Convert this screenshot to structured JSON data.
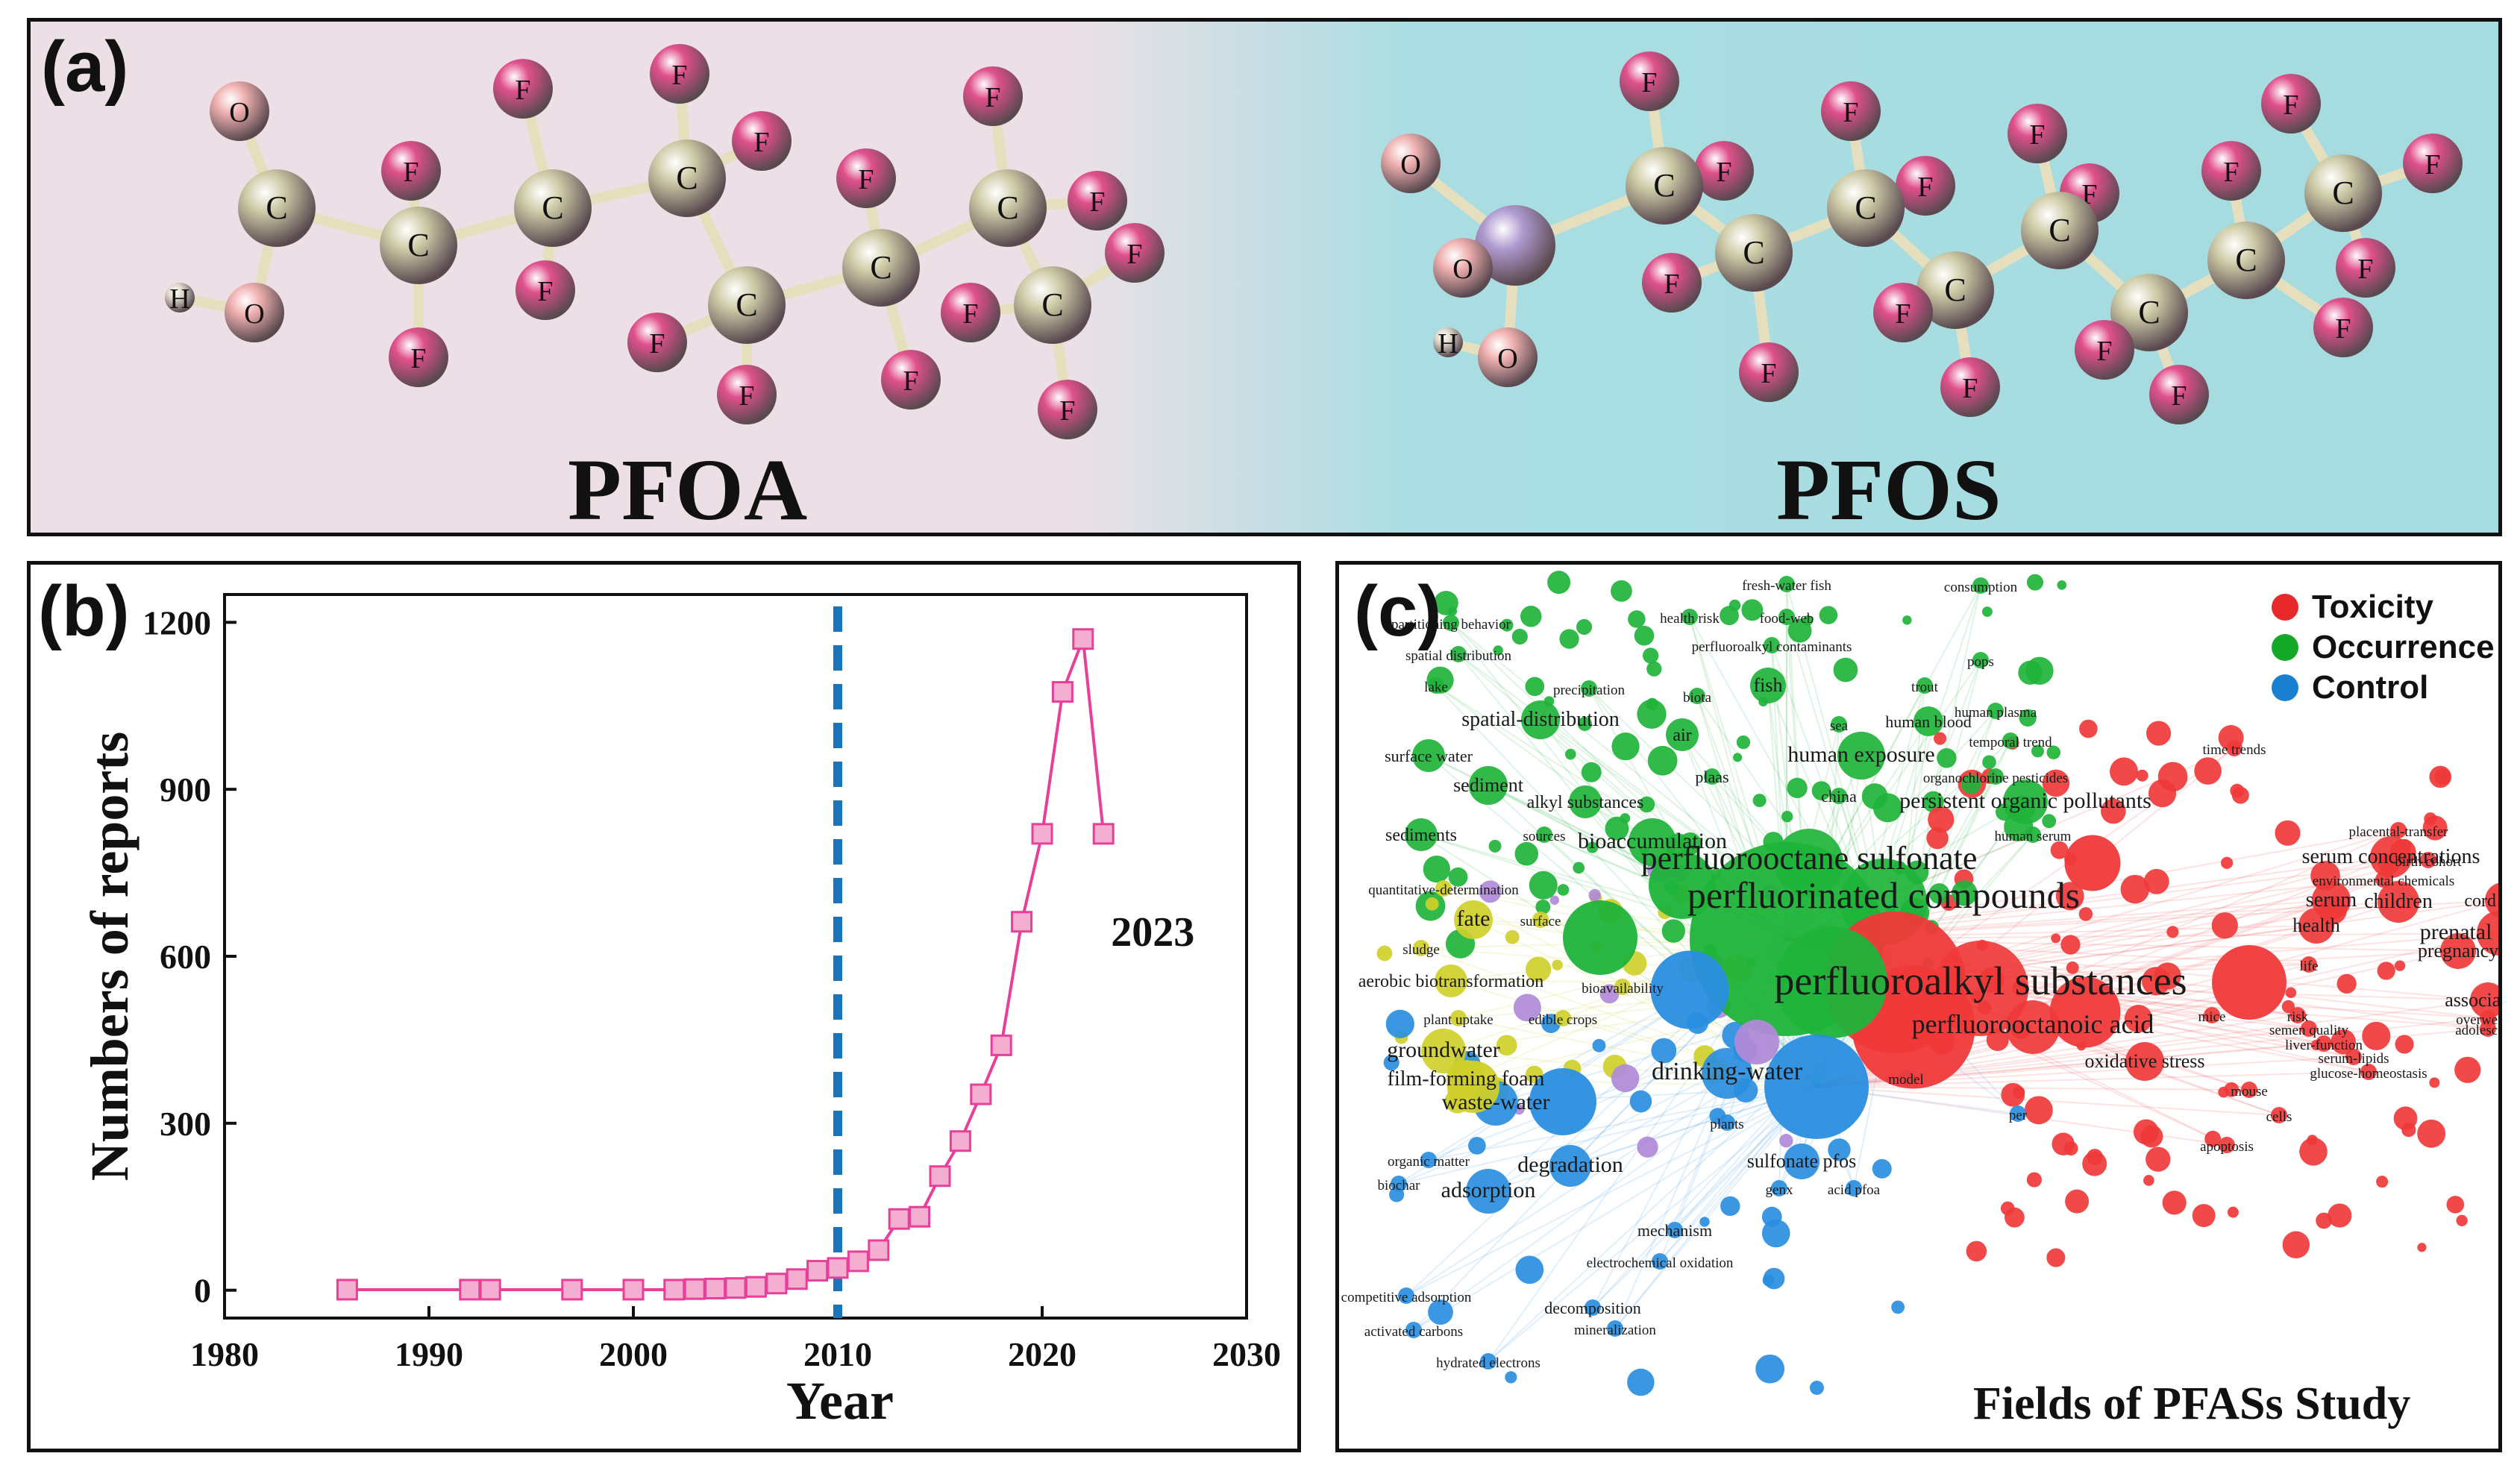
{
  "panel_a": {
    "label": "(a)",
    "left_molecule": "PFOA",
    "right_molecule": "PFOS",
    "atom_labels": {
      "carbon": "C",
      "fluorine": "F",
      "oxygen": "O",
      "hydrogen": "H"
    },
    "colors": {
      "carbon": "#cfcca8",
      "fluorine": "#e0508c",
      "oxygen": "#f0b0b0",
      "sulfur": "#b09ad0",
      "hydrogen": "#e0d8cc"
    }
  },
  "panel_b": {
    "label": "(b)",
    "annotation": "2023"
  },
  "panel_c": {
    "label": "(c)",
    "title": "Fields of PFASs Study",
    "legend": [
      {
        "label": "Toxicity",
        "color": "#e8292b"
      },
      {
        "label": "Occurrence",
        "color": "#16a829"
      },
      {
        "label": "Control",
        "color": "#1a7fd0"
      }
    ],
    "cluster_colors": {
      "toxicity": "#f0393a",
      "occurrence": "#1fb33a",
      "control": "#2a8ee0",
      "yellow": "#cfcf2a",
      "purple": "#b08ad8"
    },
    "keywords": [
      {
        "text": "fresh-water fish",
        "cluster": "occurrence"
      },
      {
        "text": "consumption",
        "cluster": "occurrence"
      },
      {
        "text": "partitioning behavior",
        "cluster": "occurrence"
      },
      {
        "text": "health risk",
        "cluster": "occurrence"
      },
      {
        "text": "food-web",
        "cluster": "occurrence"
      },
      {
        "text": "spatial distribution",
        "cluster": "occurrence"
      },
      {
        "text": "perfluoroalkyl contaminants",
        "cluster": "occurrence"
      },
      {
        "text": "pops",
        "cluster": "occurrence"
      },
      {
        "text": "lake",
        "cluster": "occurrence"
      },
      {
        "text": "precipitation",
        "cluster": "occurrence"
      },
      {
        "text": "fish",
        "cluster": "occurrence"
      },
      {
        "text": "trout",
        "cluster": "occurrence"
      },
      {
        "text": "biota",
        "cluster": "occurrence"
      },
      {
        "text": "human plasma",
        "cluster": "occurrence"
      },
      {
        "text": "spatial-distribution",
        "cluster": "occurrence"
      },
      {
        "text": "sea",
        "cluster": "occurrence"
      },
      {
        "text": "human blood",
        "cluster": "occurrence"
      },
      {
        "text": "air",
        "cluster": "occurrence"
      },
      {
        "text": "temporal trend",
        "cluster": "occurrence"
      },
      {
        "text": "surface water",
        "cluster": "occurrence"
      },
      {
        "text": "human exposure",
        "cluster": "occurrence"
      },
      {
        "text": "plaas",
        "cluster": "occurrence"
      },
      {
        "text": "organochlorine pesticides",
        "cluster": "occurrence"
      },
      {
        "text": "sediment",
        "cluster": "occurrence"
      },
      {
        "text": "china",
        "cluster": "occurrence"
      },
      {
        "text": "alkyl substances",
        "cluster": "occurrence"
      },
      {
        "text": "persistent organic pollutants",
        "cluster": "occurrence"
      },
      {
        "text": "sediments",
        "cluster": "occurrence"
      },
      {
        "text": "sources",
        "cluster": "occurrence"
      },
      {
        "text": "human serum",
        "cluster": "occurrence"
      },
      {
        "text": "bioaccumulation",
        "cluster": "occurrence"
      },
      {
        "text": "perfluorooctane sulfonate",
        "cluster": "occurrence"
      },
      {
        "text": "perfluorinated compounds",
        "cluster": "occurrence"
      },
      {
        "text": "time trends",
        "cluster": "toxicity"
      },
      {
        "text": "placental-transfer",
        "cluster": "toxicity"
      },
      {
        "text": "serum concentrations",
        "cluster": "toxicity"
      },
      {
        "text": "birth cohort",
        "cluster": "toxicity"
      },
      {
        "text": "environmental chemicals",
        "cluster": "toxicity"
      },
      {
        "text": "serum",
        "cluster": "toxicity"
      },
      {
        "text": "children",
        "cluster": "toxicity"
      },
      {
        "text": "cord blood",
        "cluster": "toxicity"
      },
      {
        "text": "health",
        "cluster": "toxicity"
      },
      {
        "text": "prenatal exposure",
        "cluster": "toxicity"
      },
      {
        "text": "pregnancy",
        "cluster": "toxicity"
      },
      {
        "text": "life",
        "cluster": "toxicity"
      },
      {
        "text": "perfluoroalkyl substances",
        "cluster": "toxicity"
      },
      {
        "text": "association",
        "cluster": "toxicity"
      },
      {
        "text": "mice",
        "cluster": "toxicity"
      },
      {
        "text": "risk",
        "cluster": "toxicity"
      },
      {
        "text": "overweight",
        "cluster": "toxicity"
      },
      {
        "text": "semen quality",
        "cluster": "toxicity"
      },
      {
        "text": "adolescents",
        "cluster": "toxicity"
      },
      {
        "text": "perfluorooctanoic acid",
        "cluster": "toxicity"
      },
      {
        "text": "serum-lipids",
        "cluster": "toxicity"
      },
      {
        "text": "liver-function",
        "cluster": "toxicity"
      },
      {
        "text": "oxidative stress",
        "cluster": "toxicity"
      },
      {
        "text": "glucose-homeostasis",
        "cluster": "toxicity"
      },
      {
        "text": "mouse",
        "cluster": "toxicity"
      },
      {
        "text": "cells",
        "cluster": "toxicity"
      },
      {
        "text": "apoptosis",
        "cluster": "toxicity"
      },
      {
        "text": "quantitative-determination",
        "cluster": "yellow"
      },
      {
        "text": "fate",
        "cluster": "yellow"
      },
      {
        "text": "surface",
        "cluster": "yellow"
      },
      {
        "text": "sludge",
        "cluster": "yellow"
      },
      {
        "text": "aerobic biotransformation",
        "cluster": "yellow"
      },
      {
        "text": "bioavailability",
        "cluster": "yellow"
      },
      {
        "text": "plant uptake",
        "cluster": "yellow"
      },
      {
        "text": "edible crops",
        "cluster": "yellow"
      },
      {
        "text": "groundwater",
        "cluster": "yellow"
      },
      {
        "text": "film-forming foam",
        "cluster": "yellow"
      },
      {
        "text": "drinking-water",
        "cluster": "control"
      },
      {
        "text": "model",
        "cluster": "control"
      },
      {
        "text": "waste-water",
        "cluster": "control"
      },
      {
        "text": "per",
        "cluster": "control"
      },
      {
        "text": "plants",
        "cluster": "control"
      },
      {
        "text": "organic matter",
        "cluster": "control"
      },
      {
        "text": "sulfonate pfos",
        "cluster": "control"
      },
      {
        "text": "biochar",
        "cluster": "control"
      },
      {
        "text": "degradation",
        "cluster": "control"
      },
      {
        "text": "genx",
        "cluster": "control"
      },
      {
        "text": "acid pfoa",
        "cluster": "control"
      },
      {
        "text": "adsorption",
        "cluster": "control"
      },
      {
        "text": "mechanism",
        "cluster": "control"
      },
      {
        "text": "electrochemical oxidation",
        "cluster": "control"
      },
      {
        "text": "competitive adsorption",
        "cluster": "control"
      },
      {
        "text": "decomposition",
        "cluster": "control"
      },
      {
        "text": "activated carbons",
        "cluster": "control"
      },
      {
        "text": "mineralization",
        "cluster": "control"
      },
      {
        "text": "hydrated electrons",
        "cluster": "control"
      }
    ]
  },
  "chart_data": {
    "type": "line",
    "xlabel": "Year",
    "ylabel": "Numbers of reports",
    "xlim": [
      1980,
      2030
    ],
    "ylim": [
      -50,
      1250
    ],
    "xticks": [
      1980,
      1990,
      2000,
      2010,
      2020,
      2030
    ],
    "yticks": [
      0,
      300,
      600,
      900,
      1200
    ],
    "vline": {
      "x": 2010,
      "color": "#1a75bb",
      "style": "dashed"
    },
    "series_color": "#e8409a",
    "marker_fill": "#f4aed0",
    "x": [
      1986,
      1992,
      1993,
      1997,
      2000,
      2002,
      2003,
      2004,
      2005,
      2006,
      2007,
      2008,
      2009,
      2010,
      2011,
      2012,
      2013,
      2014,
      2015,
      2016,
      2017,
      2018,
      2019,
      2020,
      2021,
      2022,
      2023
    ],
    "values": [
      1,
      1,
      1,
      1,
      1,
      1,
      2,
      3,
      4,
      6,
      12,
      20,
      35,
      40,
      52,
      72,
      128,
      132,
      205,
      268,
      352,
      440,
      662,
      820,
      1075,
      1170,
      820
    ],
    "annotation": {
      "text": "2023",
      "x": 2023,
      "y": 820
    }
  }
}
